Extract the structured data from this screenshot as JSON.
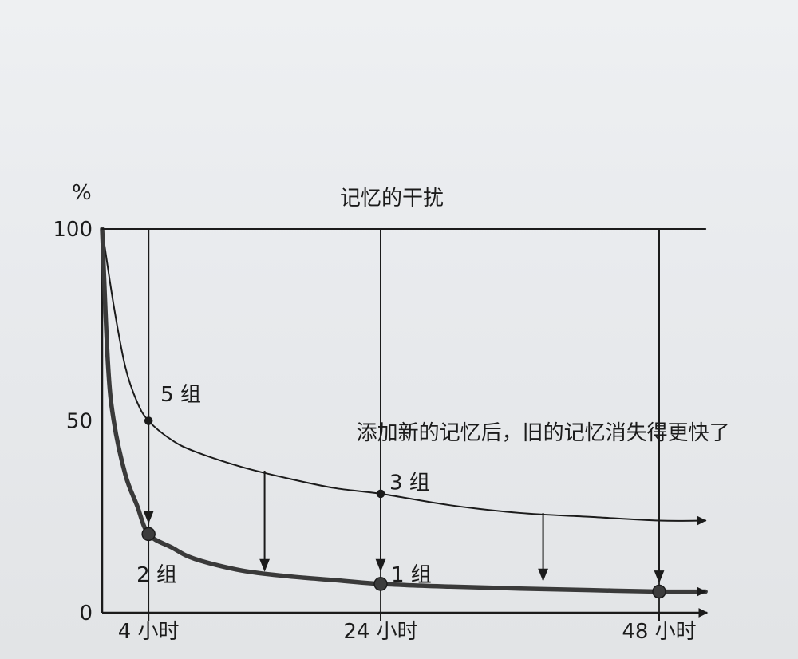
{
  "chart_data": {
    "type": "line",
    "title": "记忆的干扰",
    "ylabel": "%",
    "xlabel": "",
    "ylim": [
      0,
      100
    ],
    "y_ticks": [
      "100",
      "50",
      "0"
    ],
    "x_ticks": [
      {
        "x": 4,
        "label": "4 小时"
      },
      {
        "x": 24,
        "label": "24 小时"
      },
      {
        "x": 48,
        "label": "48 小时"
      }
    ],
    "xlim": [
      0,
      52
    ],
    "grid": "vertical lines at 4, 24, 48 hours",
    "series": [
      {
        "name": "",
        "style": "thin",
        "x": [
          0,
          1,
          2,
          3,
          4,
          6,
          8,
          12,
          16,
          20,
          24,
          30,
          36,
          42,
          48,
          52
        ],
        "values": [
          100,
          80,
          64,
          55,
          50,
          45,
          42,
          38,
          35,
          32.5,
          31,
          28,
          26,
          25,
          24,
          24
        ]
      },
      {
        "name": "",
        "style": "bold",
        "x": [
          0,
          0.5,
          1,
          2,
          3,
          4,
          6,
          8,
          12,
          16,
          20,
          24,
          30,
          36,
          42,
          48,
          52
        ],
        "values": [
          100,
          65,
          50,
          36,
          28,
          20.5,
          17,
          14,
          11,
          9.5,
          8.5,
          7.5,
          6.8,
          6.3,
          5.9,
          5.5,
          5.5
        ]
      },
      {
        "name": "",
        "style": "thin",
        "x": [
          0,
          52
        ],
        "values": [
          100,
          100
        ]
      }
    ],
    "markers": [
      {
        "x": 4,
        "y": 50,
        "size": "small"
      },
      {
        "x": 24,
        "y": 31,
        "size": "small"
      },
      {
        "x": 4,
        "y": 20.5,
        "size": "large"
      },
      {
        "x": 24,
        "y": 7.5,
        "size": "large"
      },
      {
        "x": 48,
        "y": 5.5,
        "size": "large"
      }
    ],
    "down_arrows": [
      {
        "x": 4,
        "from": 100,
        "to": 23.5
      },
      {
        "x": 14,
        "from": 37,
        "to": 11
      },
      {
        "x": 24,
        "from": 100,
        "to": 11
      },
      {
        "x": 38,
        "from": 26,
        "to": 8.5
      },
      {
        "x": 48,
        "from": 100,
        "to": 8
      }
    ],
    "annotations": [
      {
        "text": "5 组",
        "x": 4,
        "y": 57
      },
      {
        "text": "3 组",
        "x": 24,
        "y": 34
      },
      {
        "text": "2 组",
        "x": 4,
        "y": 10
      },
      {
        "text": "1 组",
        "x": 24,
        "y": 10
      },
      {
        "text": "添加新的记忆后，旧的记忆消失得更快了",
        "x": 38,
        "y": 47
      }
    ]
  },
  "colors": {
    "ink": "#1b1b1b",
    "bold_curve": "#3a3a3a",
    "background": "#e9ebee"
  }
}
